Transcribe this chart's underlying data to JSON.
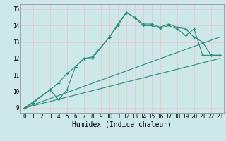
{
  "bg_color": "#cce8e8",
  "grid_color": "#e8c8c8",
  "line_color": "#2e8b7a",
  "xlabel": "Humidex (Indice chaleur)",
  "xlim": [
    -0.5,
    23.5
  ],
  "ylim": [
    8.7,
    15.3
  ],
  "yticks": [
    9,
    10,
    11,
    12,
    13,
    14,
    15
  ],
  "xticks": [
    0,
    1,
    2,
    3,
    4,
    5,
    6,
    7,
    8,
    9,
    10,
    11,
    12,
    13,
    14,
    15,
    16,
    17,
    18,
    19,
    20,
    21,
    22,
    23
  ],
  "curve1_x": [
    0,
    1,
    3,
    4,
    5,
    6,
    7,
    8,
    10,
    11,
    12,
    13,
    14,
    15,
    16,
    17,
    18,
    19,
    20,
    21,
    22,
    23
  ],
  "curve1_y": [
    9.0,
    9.3,
    10.1,
    9.5,
    10.1,
    11.5,
    12.0,
    12.0,
    13.3,
    14.1,
    14.8,
    14.5,
    14.1,
    14.1,
    13.9,
    14.1,
    13.9,
    13.8,
    13.3,
    13.0,
    12.2,
    12.2
  ],
  "curve2_x": [
    0,
    3,
    4,
    5,
    6,
    7,
    8,
    10,
    11,
    12,
    13,
    14,
    15,
    16,
    17,
    18,
    19,
    20,
    21,
    22,
    23
  ],
  "curve2_y": [
    9.0,
    10.1,
    10.5,
    11.1,
    11.5,
    12.0,
    12.1,
    13.3,
    14.0,
    14.8,
    14.5,
    14.0,
    14.0,
    13.85,
    14.0,
    13.8,
    13.4,
    13.8,
    12.2,
    12.2,
    12.2
  ],
  "line1_x": [
    0,
    23
  ],
  "line1_y": [
    9.0,
    13.3
  ],
  "line2_x": [
    0,
    23
  ],
  "line2_y": [
    9.0,
    12.0
  ],
  "xlabel_fontsize": 7,
  "tick_fontsize": 5.5
}
